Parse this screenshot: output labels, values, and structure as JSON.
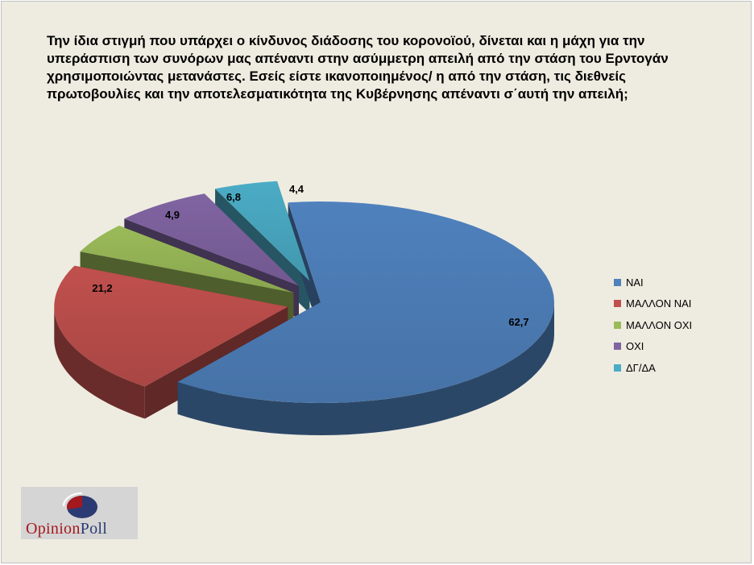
{
  "title": "Την ίδια στιγμή που υπάρχει ο κίνδυνος διάδοσης του κορονοϊού, δίνεται και η μάχη για την υπεράσπιση των συνόρων μας απέναντι στην ασύμμετρη απειλή από την στάση του Ερντογάν χρησιμοποιώντας μετανάστες. Εσείς είστε ικανοποιημένος/ η από την στάση, τις διεθνείς πρωτοβουλίες και την αποτελεσματικότητα της Κυβέρνησης απέναντι σ΄αυτή την απειλή;",
  "logo": {
    "part1": "Opinion",
    "part2": "Poll",
    "colors": [
      "#a5181d",
      "#2b3a72"
    ]
  },
  "chart_data": {
    "type": "pie",
    "style": "3d-exploded",
    "legend_position": "right",
    "slices": [
      {
        "label": "ΝΑΙ",
        "value": 62.7,
        "display": "62,7",
        "color": "#4f81bd"
      },
      {
        "label": "ΜΑΛΛΟΝ ΝΑΙ",
        "value": 21.2,
        "display": "21,2",
        "color": "#c0504d"
      },
      {
        "label": "ΜΑΛΛΟΝ ΟΧΙ",
        "value": 4.9,
        "display": "4,9",
        "color": "#9bbb59"
      },
      {
        "label": "ΟΧΙ",
        "value": 6.8,
        "display": "6,8",
        "color": "#8064a2"
      },
      {
        "label": "ΔΓ/ΔΑ",
        "value": 4.4,
        "display": "4,4",
        "color": "#4bacc6"
      }
    ]
  }
}
